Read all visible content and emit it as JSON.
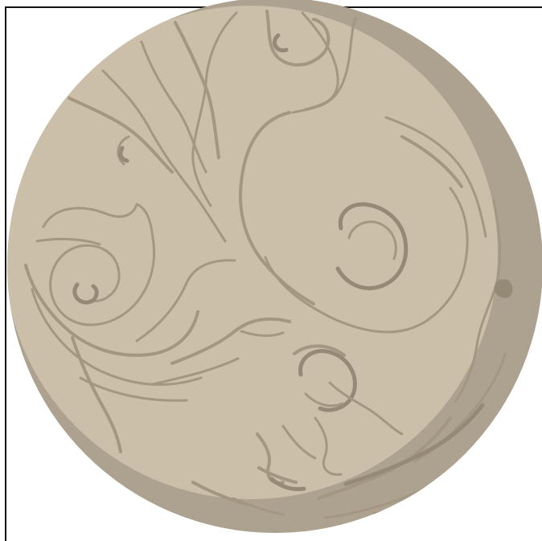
{
  "image": {
    "subject": "planet-illustration",
    "colors": {
      "background": "#ffffff",
      "frame": "#111111",
      "planet_base": "#cbbfa9",
      "planet_shadow": "#ada290",
      "swirl_lines": "#a39781",
      "swirl_dark": "#958a75"
    }
  }
}
